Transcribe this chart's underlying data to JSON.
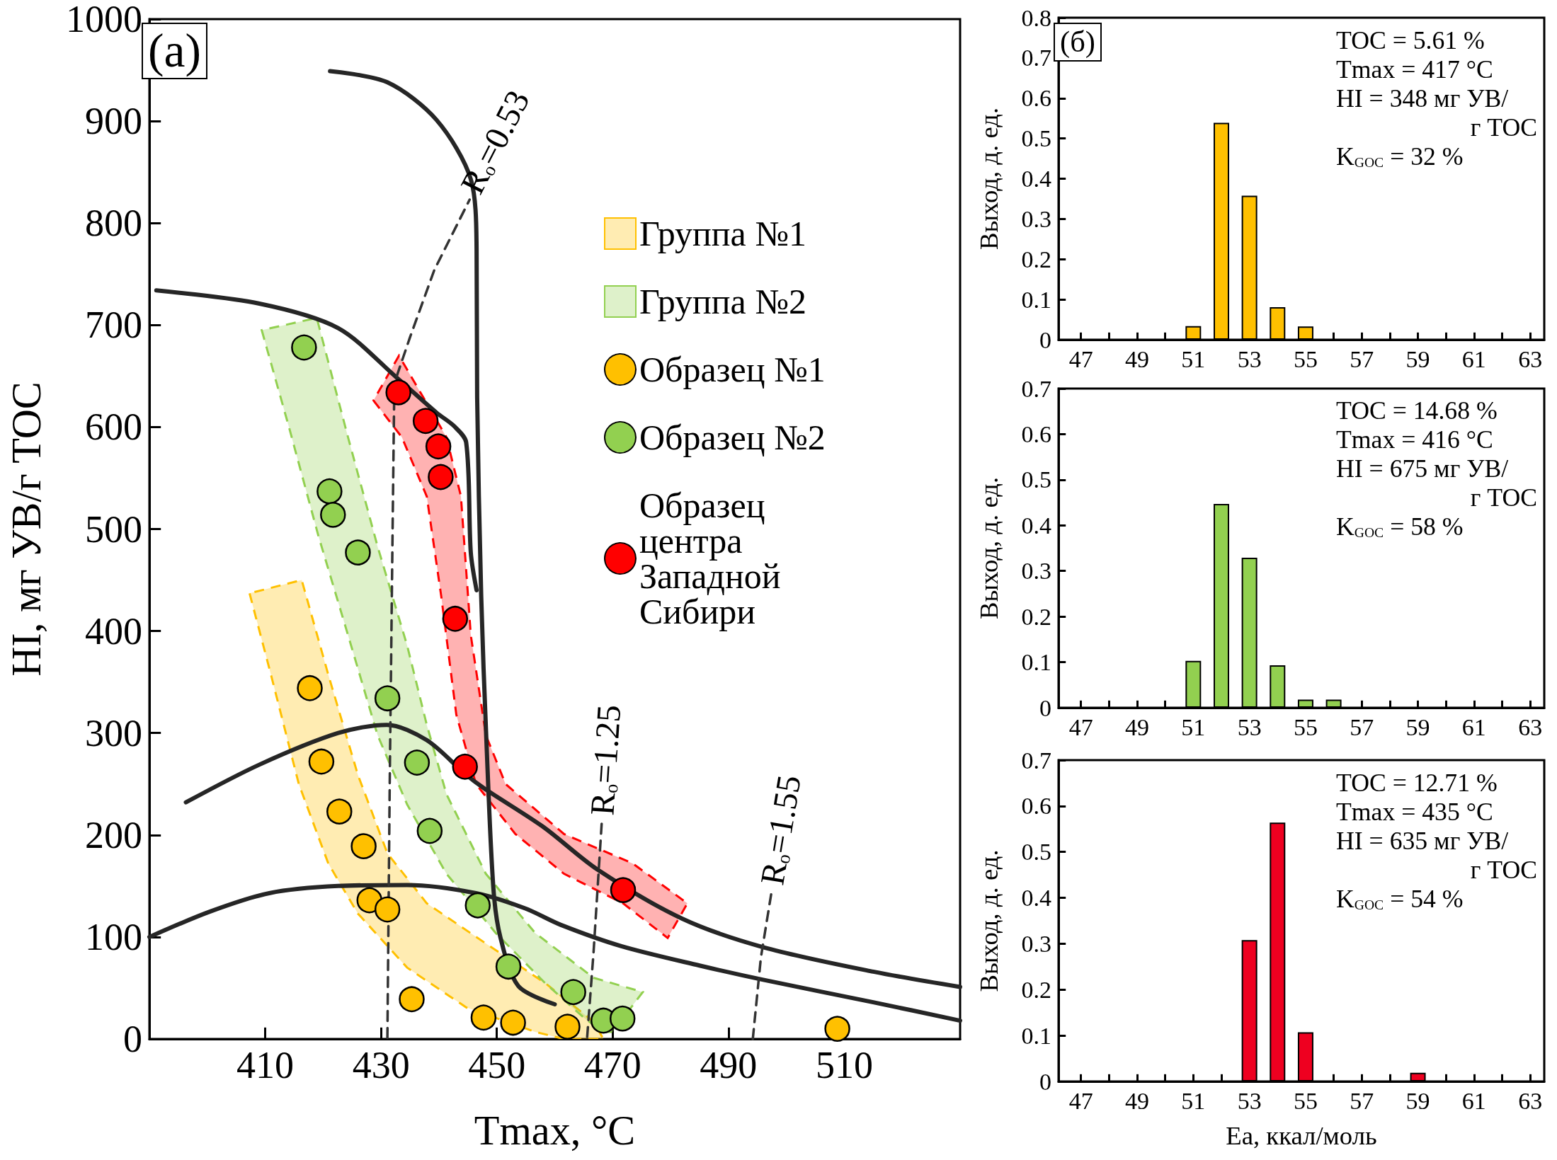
{
  "chart_data": [
    {
      "type": "scatter",
      "title": "(a)",
      "xlabel": "Tmax, °C",
      "ylabel": "HI, мг УВ/г TOC",
      "xlim": [
        390,
        530
      ],
      "ylim": [
        0,
        1000
      ],
      "xticks": [
        410,
        430,
        450,
        470,
        490,
        510
      ],
      "yticks": [
        0,
        100,
        200,
        300,
        400,
        500,
        600,
        700,
        800,
        900,
        1000
      ],
      "legend": "top right",
      "series": [
        {
          "type": "area",
          "name": "Группа №1",
          "color": "#ffc000",
          "line_style": "dashed",
          "x": [
            407.3,
            411,
            415.8,
            420.9,
            426,
            434.5,
            444.7,
            456.6,
            461.6,
            468.4,
            466.7,
            458.3,
            448,
            437.9,
            431.1,
            426,
            420.9,
            416.3
          ],
          "values": [
            437,
            357,
            250,
            172,
            123,
            70,
            31,
            7,
            0,
            0,
            17,
            55,
            94,
            133,
            182,
            259,
            357,
            450
          ]
        },
        {
          "type": "area",
          "name": "Группа №2",
          "color": "#92d050",
          "line_style": "dashed",
          "x": [
            409.4,
            414.1,
            419.2,
            424.3,
            429.4,
            434.5,
            441.3,
            449.8,
            458.3,
            465,
            468.4,
            470,
            475.2,
            466.7,
            456.6,
            448.1,
            441.3,
            437.9,
            434.5,
            429.4,
            424.3,
            418.9
          ],
          "values": [
            695,
            600,
            493,
            396,
            298,
            230,
            162,
            104,
            55,
            21,
            7,
            7,
            46,
            60,
            104,
            162,
            240,
            308,
            386,
            483,
            590,
            707
          ]
        },
        {
          "type": "area",
          "color": "#ff0000",
          "line_style": "dashed",
          "x": [
            428.7,
            433.6,
            437.9,
            440.4,
            443,
            446.4,
            453.2,
            461.6,
            471.8,
            479.5,
            482.9,
            473.5,
            461.6,
            451.5,
            448.1,
            445.5,
            443.8,
            441.3,
            433.1
          ],
          "values": [
            626,
            590,
            532,
            434,
            318,
            250,
            201,
            162,
            133,
            99,
            133,
            172,
            201,
            250,
            298,
            396,
            532,
            590,
            670
          ]
        },
        {
          "type": "line",
          "color": "#262626",
          "x": [
            421.2,
            431.1,
            439.6,
            445.5,
            446.5,
            446.6,
            447.3,
            448.2,
            449.4,
            450.6,
            453.7,
            460
          ],
          "values": [
            949,
            938,
            901,
            843,
            775,
            629,
            434,
            292,
            148,
            100,
            52,
            34
          ]
        },
        {
          "type": "line",
          "color": "#262626",
          "x": [
            391.2,
            409,
            422.6,
            432.8,
            439.6,
            442.6,
            444.7,
            445.5,
            446.5
          ],
          "values": [
            734,
            721,
            697,
            648,
            614,
            601,
            585,
            477,
            440
          ]
        },
        {
          "type": "line",
          "color": "#262626",
          "x": [
            396.3,
            409,
            422.6,
            431,
            437.9,
            444.7,
            448,
            458,
            467.4,
            482,
            496,
            515,
            530
          ],
          "values": [
            232,
            269,
            300,
            308,
            293,
            259,
            245,
            208,
            166,
            118,
            90,
            66,
            51
          ]
        },
        {
          "type": "line",
          "color": "#262626",
          "x": [
            390,
            400.5,
            410.7,
            422.6,
            434.5,
            446.4,
            454.9,
            461,
            471.5,
            485,
            496,
            515,
            530
          ],
          "values": [
            100,
            125,
            143,
            150,
            151,
            143,
            128,
            112,
            91,
            72,
            58,
            36,
            18
          ]
        },
        {
          "type": "line",
          "name": "R$_{o}$=0.53",
          "color": "#333333",
          "line_style": "dashed",
          "x": [
            431.1,
            431.5,
            432,
            432.3,
            435,
            439.2,
            445.3
          ],
          "values": [
            1,
            250,
            500,
            643,
            688,
            754,
            823
          ]
        },
        {
          "type": "line",
          "name": "R$_{o}$=1.25",
          "color": "#333333",
          "line_style": "dashed",
          "x": [
            465.6,
            466.7,
            468.1
          ],
          "values": [
            2,
            85,
            211
          ]
        },
        {
          "type": "line",
          "name": "R$_{o}$=1.55",
          "color": "#333333",
          "line_style": "dashed",
          "x": [
            494.2,
            495.6,
            497.4
          ],
          "values": [
            0,
            80,
            143
          ]
        },
        {
          "marker": "circle",
          "name": "Образец №1",
          "color": "#ffc000",
          "x": [
            417.7,
            419.7,
            422.8,
            427,
            428,
            431.1,
            435.3,
            447.7,
            452.8,
            462.2,
            508.8
          ],
          "values": [
            344,
            272,
            223,
            189,
            136,
            127,
            39,
            21,
            16,
            12,
            10
          ]
        },
        {
          "marker": "circle",
          "name": "Образец №2",
          "color": "#92d050",
          "x": [
            416.7,
            421.1,
            421.7,
            426,
            431.1,
            436.2,
            438.4,
            446.7,
            452,
            463.2,
            468.4,
            471.7
          ],
          "values": [
            678,
            537,
            514,
            477,
            334,
            271,
            204,
            131,
            71,
            46,
            18,
            20
          ]
        },
        {
          "marker": "circle",
          "name": "Образец центра Западной Сибири",
          "color": "#ff0000",
          "x": [
            433,
            437.7,
            439.9,
            440.3,
            442.8,
            444.5,
            471.8
          ],
          "values": [
            634,
            606,
            581,
            551,
            412,
            267,
            146
          ]
        }
      ]
    },
    {
      "type": "bar",
      "title": "(б)",
      "ylabel": "Выход, д. ед.",
      "xlim": [
        46.2,
        63.5
      ],
      "ylim": [
        0,
        0.8
      ],
      "yticks": [
        0,
        0.1,
        0.2,
        0.3,
        0.4,
        0.5,
        0.6,
        0.7,
        0.8
      ],
      "xticks": [
        47,
        {
          "value": 48,
          "label": null
        },
        49,
        {
          "value": 50,
          "label": null
        },
        51,
        {
          "value": 52,
          "label": null
        },
        53,
        {
          "value": 54,
          "label": null
        },
        55,
        {
          "value": 56,
          "label": null
        },
        57,
        {
          "value": 58,
          "label": null
        },
        59,
        {
          "value": 60,
          "label": null
        },
        61,
        {
          "value": 62,
          "label": null
        },
        63
      ],
      "x": [
        51,
        52,
        53,
        54,
        55
      ],
      "values": [
        0.034,
        0.539,
        0.358,
        0.081,
        0.033
      ],
      "color": "#ffc000",
      "annotations": [
        "TOC = 5.61 %",
        "Tmax = 417 °C",
        "HI = 348 мг УВ/",
        "г TOC",
        "K$_{GOC}$ = 32 %"
      ]
    },
    {
      "type": "bar",
      "ylabel": "Выход, д. ед.",
      "xlim": [
        46.2,
        63.5
      ],
      "ylim": [
        0,
        0.7
      ],
      "yticks": [
        0,
        0.1,
        0.2,
        0.3,
        0.4,
        0.5,
        0.6,
        0.7
      ],
      "xticks": [
        47,
        {
          "value": 48,
          "label": null
        },
        49,
        {
          "value": 50,
          "label": null
        },
        51,
        {
          "value": 52,
          "label": null
        },
        53,
        {
          "value": 54,
          "label": null
        },
        55,
        {
          "value": 56,
          "label": null
        },
        57,
        {
          "value": 58,
          "label": null
        },
        59,
        {
          "value": 60,
          "label": null
        },
        61,
        {
          "value": 62,
          "label": null
        },
        63
      ],
      "x": [
        51,
        52,
        53,
        54,
        55,
        56
      ],
      "values": [
        0.103,
        0.447,
        0.329,
        0.093,
        0.018,
        0.018
      ],
      "color": "#92d050",
      "annotations": [
        "TOC = 14.68 %",
        "Tmax = 416 °C",
        "HI = 675 мг УВ/",
        "г TOC",
        "K$_{GOC}$ = 58 %"
      ]
    },
    {
      "type": "bar",
      "xlabel": "Ea, ккал/моль",
      "ylabel": "Выход, д. ед.",
      "xlim": [
        46.2,
        63.5
      ],
      "ylim": [
        0,
        0.7
      ],
      "yticks": [
        0,
        0.1,
        0.2,
        0.3,
        0.4,
        0.5,
        0.6,
        0.7
      ],
      "xticks": [
        47,
        {
          "value": 48,
          "label": null
        },
        49,
        {
          "value": 50,
          "label": null
        },
        51,
        {
          "value": 52,
          "label": null
        },
        53,
        {
          "value": 54,
          "label": null
        },
        55,
        {
          "value": 56,
          "label": null
        },
        57,
        {
          "value": 58,
          "label": null
        },
        59,
        {
          "value": 60,
          "label": null
        },
        61,
        {
          "value": 62,
          "label": null
        },
        63
      ],
      "x": [
        53,
        54,
        55,
        59
      ],
      "values": [
        0.308,
        0.564,
        0.107,
        0.019
      ],
      "color": "#ee0020",
      "annotations": [
        "TOC = 12.71 %",
        "Tmax = 435 °C",
        "HI = 635 мг УВ/",
        "г TOC",
        "K$_{GOC}$ = 54 %"
      ]
    }
  ]
}
